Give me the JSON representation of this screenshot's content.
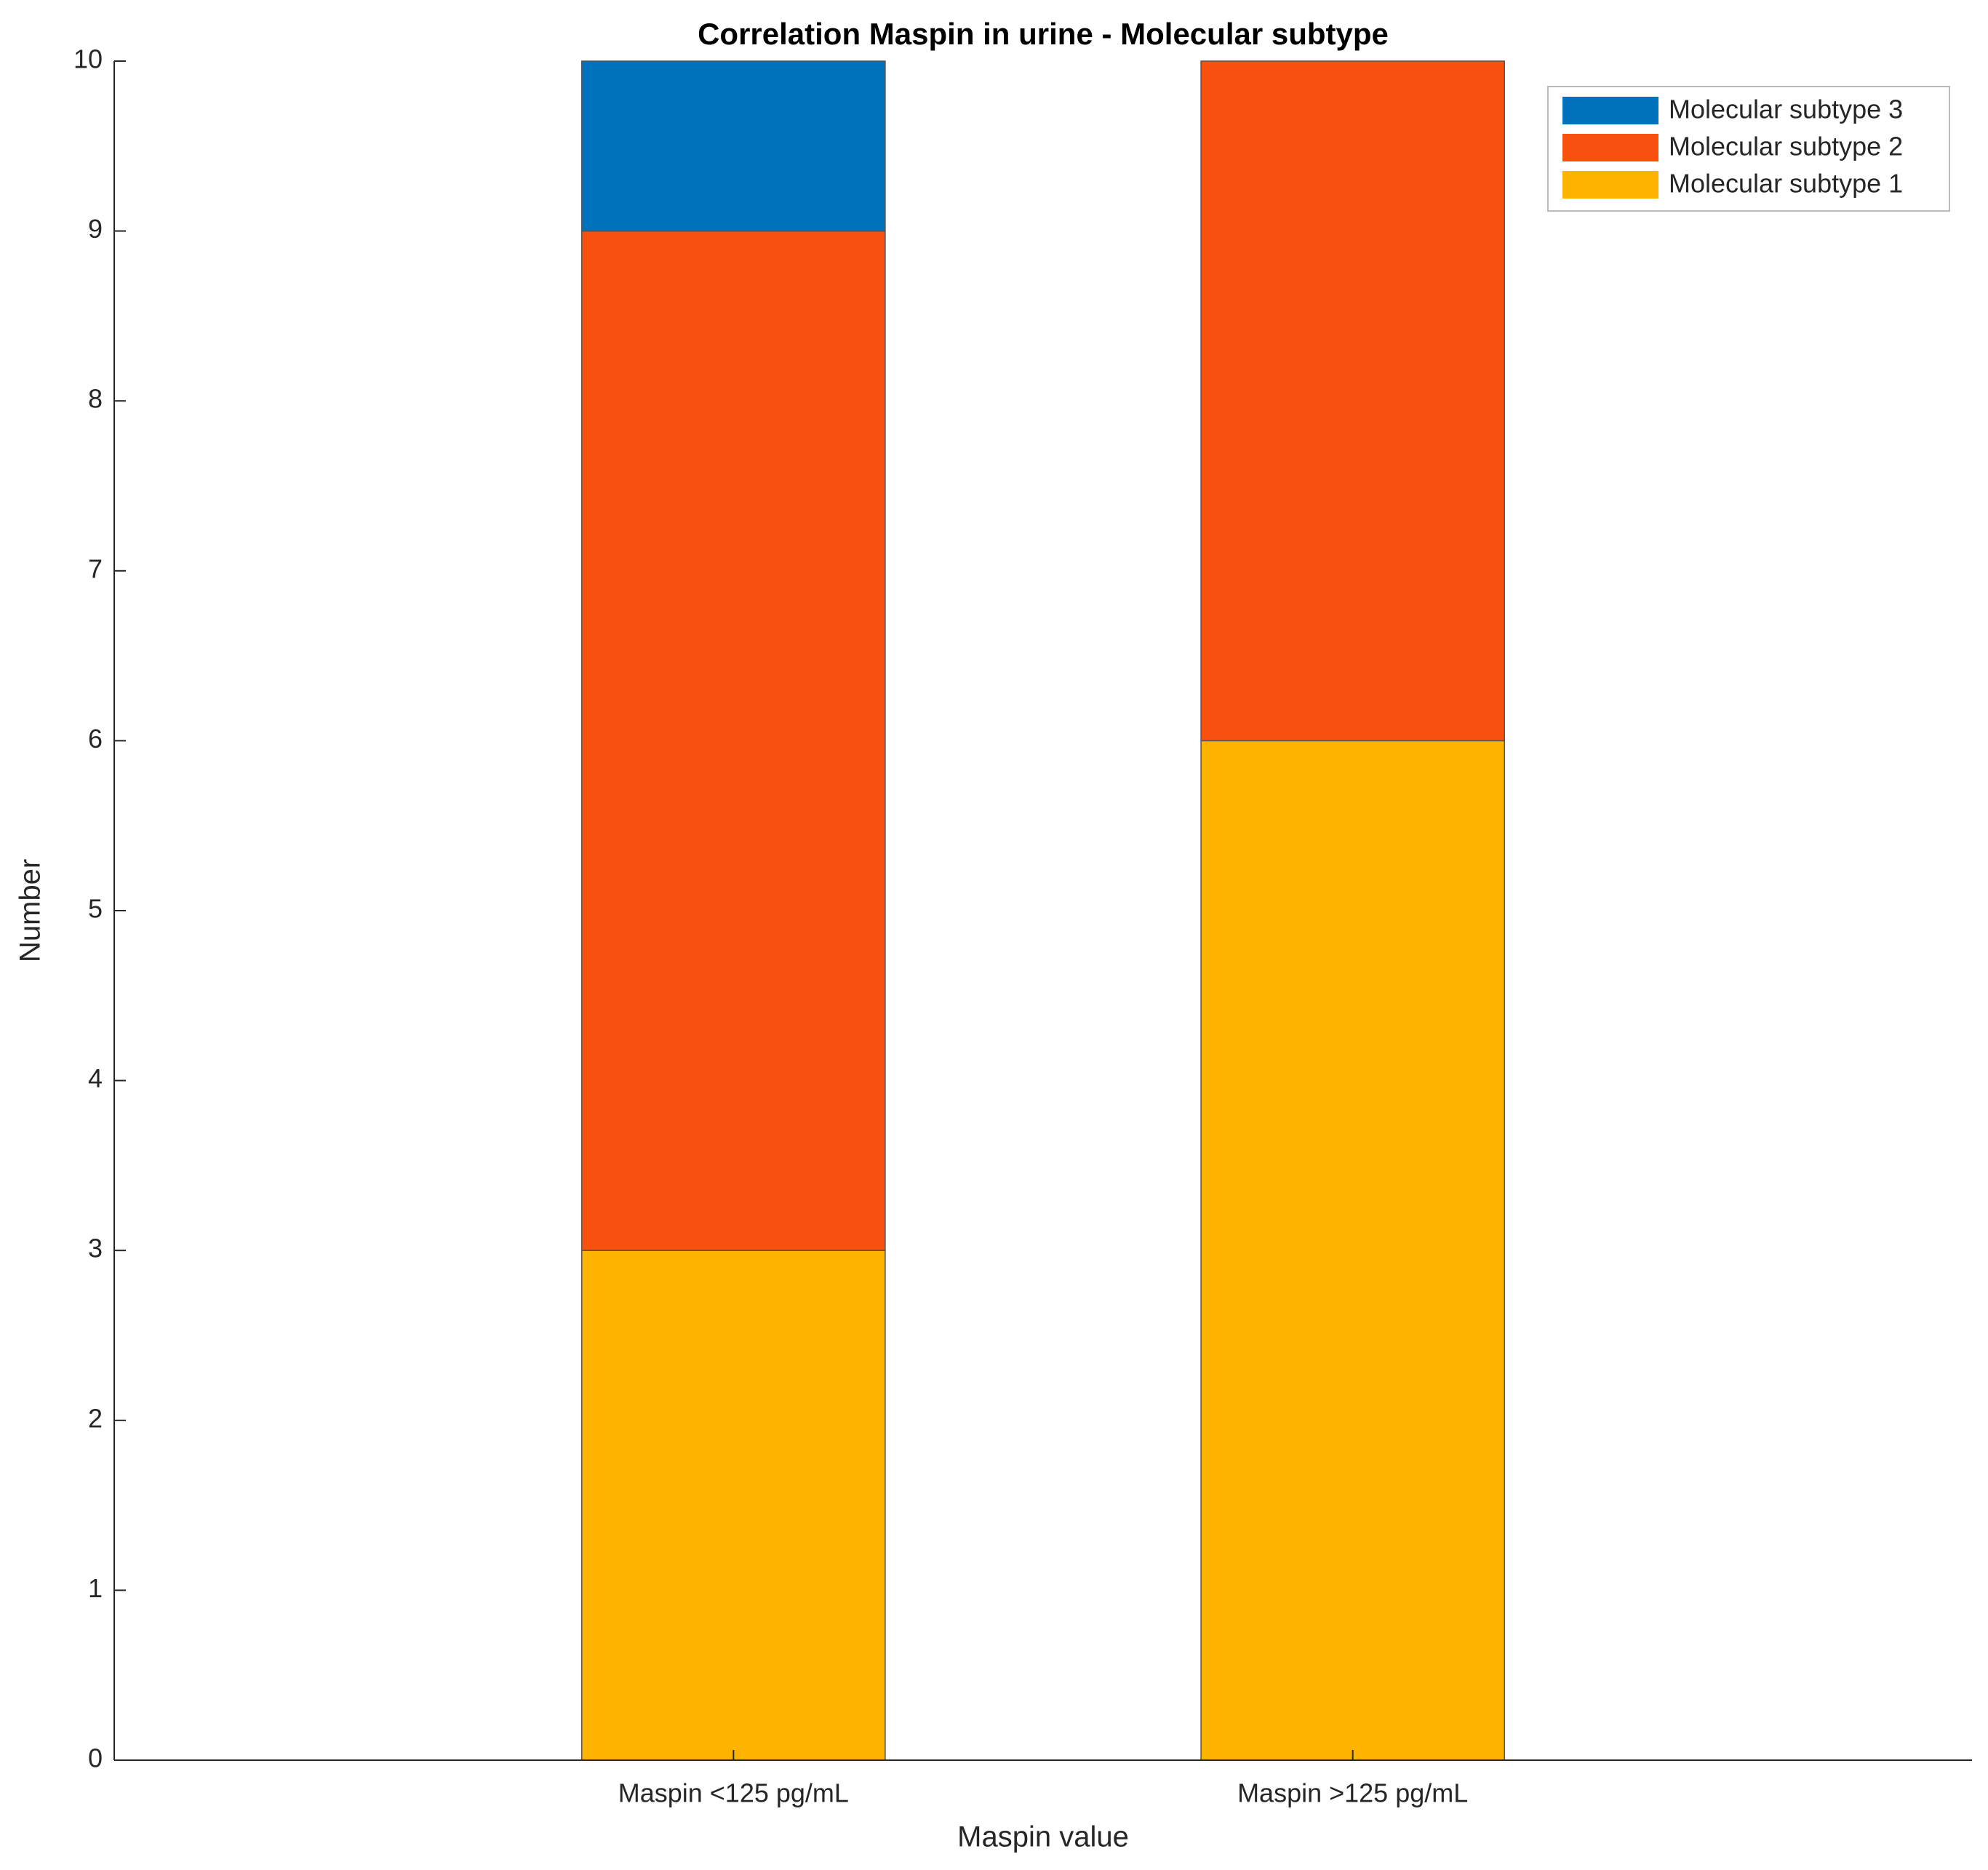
{
  "chart_data": {
    "type": "stacked_bar",
    "title": "Correlation Maspin in urine - Molecular subtype",
    "x_label": "Maspin value",
    "y_label": "Number",
    "categories": [
      "Maspin <125 pg/mL",
      "Maspin >125 pg/mL"
    ],
    "series": [
      {
        "name": "Molecular subtype 1",
        "color": "#fdb300",
        "values": [
          3,
          6
        ]
      },
      {
        "name": "Molecular subtype 2",
        "color": "#f8510f",
        "values": [
          6,
          4
        ]
      },
      {
        "name": "Molecular subtype 3",
        "color": "#0072bd",
        "values": [
          1,
          0
        ]
      }
    ],
    "ylim": [
      0,
      10
    ],
    "yticks": [
      0,
      1,
      2,
      3,
      4,
      5,
      6,
      7,
      8,
      9,
      10
    ],
    "legend": "upper right",
    "legend_order": "reversed"
  }
}
